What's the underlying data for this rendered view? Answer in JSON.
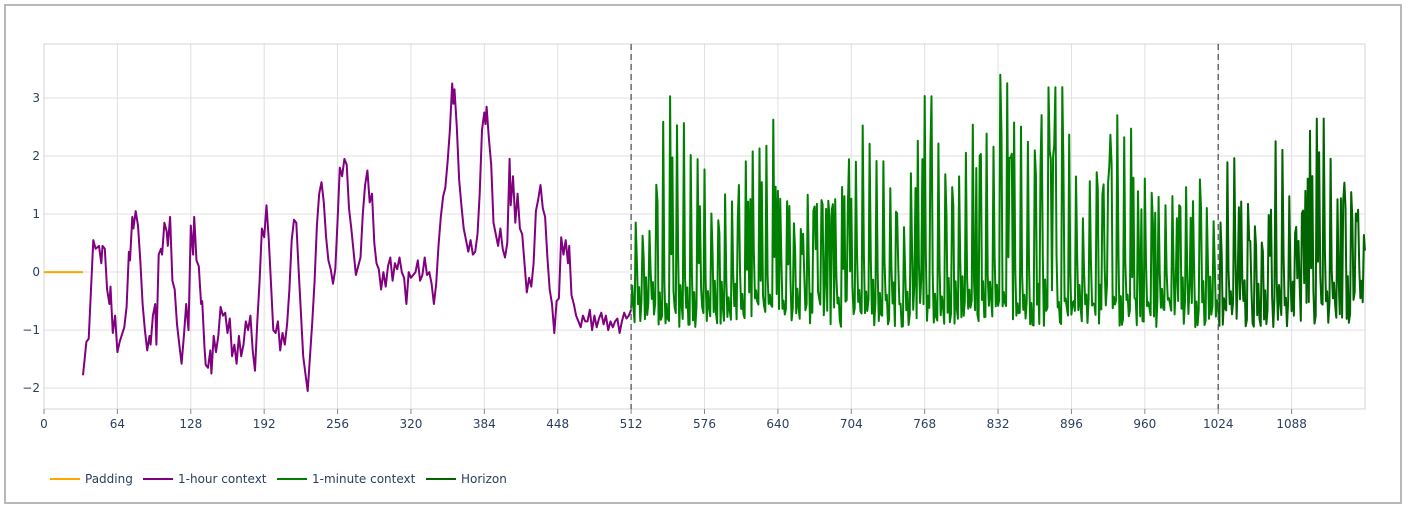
{
  "chart_data": {
    "type": "line",
    "title": "",
    "xlabel": "",
    "ylabel": "",
    "xlim": [
      0,
      1152
    ],
    "ylim": [
      -2.36,
      3.93
    ],
    "grid": true,
    "legend_position": "bottom-left, horizontal",
    "x_ticks": [
      0,
      64,
      128,
      192,
      256,
      320,
      384,
      448,
      512,
      576,
      640,
      704,
      768,
      832,
      896,
      960,
      1024,
      1088
    ],
    "y_ticks": [
      -2,
      -1,
      0,
      1,
      2,
      3
    ],
    "y_tick_labels": [
      "−2",
      "−1",
      "0",
      "1",
      "2",
      "3"
    ],
    "vertical_markers": [
      {
        "x": 512,
        "style": "dashed",
        "color": "#555555"
      },
      {
        "x": 1024,
        "style": "dashed",
        "color": "#555555"
      }
    ],
    "series": [
      {
        "name": "Padding",
        "color": "#FFA500",
        "x_range": [
          0,
          34
        ],
        "points": [
          [
            0,
            0
          ],
          [
            34,
            0
          ]
        ]
      },
      {
        "name": "1-hour context",
        "color": "#800080",
        "x_range": [
          34,
          512
        ],
        "anchors": [
          [
            34,
            -1.78
          ],
          [
            37,
            -1.2
          ],
          [
            39,
            -1.15
          ],
          [
            43,
            0.55
          ],
          [
            45,
            0.4
          ],
          [
            48,
            0.45
          ],
          [
            50,
            0.15
          ],
          [
            51,
            0.45
          ],
          [
            53,
            0.4
          ],
          [
            55,
            -0.3
          ],
          [
            57,
            -0.55
          ],
          [
            58,
            -0.25
          ],
          [
            60,
            -1.05
          ],
          [
            62,
            -0.75
          ],
          [
            64,
            -1.38
          ],
          [
            66,
            -1.2
          ],
          [
            70,
            -0.95
          ],
          [
            72,
            -0.6
          ],
          [
            74,
            0.35
          ],
          [
            75,
            0.2
          ],
          [
            77,
            0.95
          ],
          [
            78,
            0.75
          ],
          [
            80,
            1.05
          ],
          [
            82,
            0.8
          ],
          [
            84,
            0.2
          ],
          [
            86,
            -0.55
          ],
          [
            88,
            -1.0
          ],
          [
            90,
            -1.35
          ],
          [
            92,
            -1.1
          ],
          [
            93,
            -1.25
          ],
          [
            95,
            -0.75
          ],
          [
            97,
            -0.55
          ],
          [
            98,
            -1.25
          ],
          [
            100,
            0.3
          ],
          [
            102,
            0.4
          ],
          [
            103,
            0.3
          ],
          [
            105,
            0.85
          ],
          [
            107,
            0.7
          ],
          [
            108,
            0.45
          ],
          [
            110,
            0.95
          ],
          [
            112,
            -0.15
          ],
          [
            114,
            -0.3
          ],
          [
            116,
            -0.9
          ],
          [
            118,
            -1.25
          ],
          [
            120,
            -1.58
          ],
          [
            122,
            -1.1
          ],
          [
            124,
            -0.55
          ],
          [
            126,
            -1.0
          ],
          [
            128,
            0.8
          ],
          [
            130,
            0.3
          ],
          [
            131,
            0.95
          ],
          [
            133,
            0.2
          ],
          [
            135,
            0.1
          ],
          [
            137,
            -0.55
          ],
          [
            138,
            -0.5
          ],
          [
            140,
            -1.3
          ],
          [
            141,
            -1.6
          ],
          [
            143,
            -1.65
          ],
          [
            145,
            -1.35
          ],
          [
            146,
            -1.75
          ],
          [
            148,
            -1.1
          ],
          [
            150,
            -1.38
          ],
          [
            152,
            -1.1
          ],
          [
            154,
            -0.6
          ],
          [
            156,
            -0.75
          ],
          [
            158,
            -0.7
          ],
          [
            160,
            -1.05
          ],
          [
            162,
            -0.8
          ],
          [
            164,
            -1.45
          ],
          [
            166,
            -1.25
          ],
          [
            168,
            -1.58
          ],
          [
            170,
            -1.1
          ],
          [
            172,
            -1.45
          ],
          [
            174,
            -1.25
          ],
          [
            176,
            -0.85
          ],
          [
            178,
            -1.0
          ],
          [
            180,
            -0.75
          ],
          [
            182,
            -1.35
          ],
          [
            184,
            -1.7
          ],
          [
            186,
            -0.85
          ],
          [
            188,
            -0.15
          ],
          [
            190,
            0.75
          ],
          [
            192,
            0.6
          ],
          [
            194,
            1.15
          ],
          [
            196,
            0.55
          ],
          [
            198,
            -0.2
          ],
          [
            200,
            -1.0
          ],
          [
            202,
            -1.05
          ],
          [
            204,
            -0.85
          ],
          [
            206,
            -1.35
          ],
          [
            208,
            -1.05
          ],
          [
            210,
            -1.25
          ],
          [
            212,
            -0.9
          ],
          [
            214,
            -0.3
          ],
          [
            216,
            0.55
          ],
          [
            218,
            0.9
          ],
          [
            220,
            0.85
          ],
          [
            222,
            0.05
          ],
          [
            224,
            -0.7
          ],
          [
            226,
            -1.45
          ],
          [
            228,
            -1.75
          ],
          [
            230,
            -2.05
          ],
          [
            232,
            -1.45
          ],
          [
            234,
            -0.85
          ],
          [
            236,
            -0.15
          ],
          [
            238,
            0.8
          ],
          [
            240,
            1.35
          ],
          [
            242,
            1.55
          ],
          [
            244,
            1.2
          ],
          [
            246,
            0.6
          ],
          [
            248,
            0.2
          ],
          [
            250,
            0.05
          ],
          [
            252,
            -0.2
          ],
          [
            254,
            0.05
          ],
          [
            256,
            0.9
          ],
          [
            258,
            1.8
          ],
          [
            260,
            1.65
          ],
          [
            262,
            1.95
          ],
          [
            264,
            1.85
          ],
          [
            266,
            1.1
          ],
          [
            268,
            0.75
          ],
          [
            270,
            0.35
          ],
          [
            272,
            -0.05
          ],
          [
            274,
            0.1
          ],
          [
            276,
            0.25
          ],
          [
            278,
            1.0
          ],
          [
            280,
            1.5
          ],
          [
            282,
            1.75
          ],
          [
            284,
            1.2
          ],
          [
            286,
            1.35
          ],
          [
            288,
            0.5
          ],
          [
            290,
            0.15
          ],
          [
            292,
            0.05
          ],
          [
            294,
            -0.3
          ],
          [
            296,
            0.0
          ],
          [
            298,
            -0.25
          ],
          [
            300,
            0.1
          ],
          [
            302,
            0.25
          ],
          [
            304,
            -0.15
          ],
          [
            306,
            0.15
          ],
          [
            308,
            0.05
          ],
          [
            310,
            0.25
          ],
          [
            312,
            0.0
          ],
          [
            314,
            -0.1
          ],
          [
            316,
            -0.55
          ],
          [
            318,
            0.0
          ],
          [
            320,
            -0.1
          ],
          [
            322,
            -0.05
          ],
          [
            324,
            0.0
          ],
          [
            326,
            0.2
          ],
          [
            328,
            -0.15
          ],
          [
            330,
            -0.05
          ],
          [
            332,
            0.25
          ],
          [
            334,
            -0.05
          ],
          [
            336,
            0.0
          ],
          [
            338,
            -0.2
          ],
          [
            340,
            -0.55
          ],
          [
            342,
            -0.2
          ],
          [
            344,
            0.45
          ],
          [
            346,
            0.95
          ],
          [
            348,
            1.3
          ],
          [
            350,
            1.45
          ],
          [
            352,
            1.9
          ],
          [
            354,
            2.45
          ],
          [
            356,
            3.25
          ],
          [
            357,
            2.9
          ],
          [
            358,
            3.15
          ],
          [
            360,
            2.5
          ],
          [
            362,
            1.6
          ],
          [
            364,
            1.15
          ],
          [
            366,
            0.75
          ],
          [
            368,
            0.55
          ],
          [
            370,
            0.35
          ],
          [
            372,
            0.55
          ],
          [
            374,
            0.3
          ],
          [
            376,
            0.35
          ],
          [
            378,
            0.65
          ],
          [
            380,
            1.35
          ],
          [
            382,
            2.45
          ],
          [
            384,
            2.75
          ],
          [
            385,
            2.55
          ],
          [
            386,
            2.85
          ],
          [
            388,
            2.3
          ],
          [
            390,
            1.85
          ],
          [
            392,
            0.85
          ],
          [
            394,
            0.65
          ],
          [
            396,
            0.45
          ],
          [
            398,
            0.75
          ],
          [
            400,
            0.4
          ],
          [
            402,
            0.25
          ],
          [
            404,
            0.5
          ],
          [
            406,
            1.95
          ],
          [
            407,
            1.15
          ],
          [
            409,
            1.65
          ],
          [
            411,
            0.85
          ],
          [
            413,
            1.35
          ],
          [
            415,
            0.75
          ],
          [
            417,
            0.65
          ],
          [
            419,
            0.15
          ],
          [
            421,
            -0.35
          ],
          [
            423,
            -0.1
          ],
          [
            425,
            -0.25
          ],
          [
            427,
            0.15
          ],
          [
            429,
            1.05
          ],
          [
            431,
            1.25
          ],
          [
            433,
            1.5
          ],
          [
            435,
            1.1
          ],
          [
            437,
            0.95
          ],
          [
            439,
            0.25
          ],
          [
            441,
            -0.3
          ],
          [
            443,
            -0.55
          ],
          [
            445,
            -1.05
          ],
          [
            447,
            -0.5
          ],
          [
            449,
            -0.45
          ],
          [
            451,
            0.6
          ],
          [
            453,
            0.3
          ],
          [
            455,
            0.55
          ],
          [
            457,
            0.15
          ],
          [
            458,
            0.45
          ],
          [
            460,
            -0.4
          ],
          [
            462,
            -0.55
          ],
          [
            464,
            -0.75
          ],
          [
            466,
            -0.85
          ],
          [
            468,
            -0.95
          ],
          [
            470,
            -0.75
          ],
          [
            472,
            -0.85
          ],
          [
            474,
            -0.85
          ],
          [
            476,
            -0.65
          ],
          [
            478,
            -1.0
          ],
          [
            480,
            -0.75
          ],
          [
            482,
            -0.95
          ],
          [
            484,
            -0.8
          ],
          [
            486,
            -0.7
          ],
          [
            488,
            -0.9
          ],
          [
            490,
            -0.75
          ],
          [
            492,
            -1.0
          ],
          [
            494,
            -0.85
          ],
          [
            496,
            -0.95
          ],
          [
            498,
            -0.85
          ],
          [
            500,
            -0.8
          ],
          [
            502,
            -1.05
          ],
          [
            504,
            -0.85
          ],
          [
            506,
            -0.7
          ],
          [
            508,
            -0.8
          ],
          [
            510,
            -0.75
          ],
          [
            512,
            -0.65
          ]
        ]
      },
      {
        "name": "1-minute context",
        "color": "#008000",
        "x_range": [
          512,
          1024
        ],
        "peaks_note": "spiky signal, ~2-3 unit oscillations every ~5-6 samples with baseline near -0.8 and bursts up to ~3.6",
        "bursts": [
          [
            512,
            0.7
          ],
          [
            520,
            0.8
          ],
          [
            530,
            0.9
          ],
          [
            545,
            3.1
          ],
          [
            560,
            2.2
          ],
          [
            590,
            1.0
          ],
          [
            625,
            2.1
          ],
          [
            635,
            2.55
          ],
          [
            655,
            0.8
          ],
          [
            670,
            1.3
          ],
          [
            700,
            1.6
          ],
          [
            715,
            2.6
          ],
          [
            730,
            2.0
          ],
          [
            750,
            1.2
          ],
          [
            770,
            3.2
          ],
          [
            790,
            1.1
          ],
          [
            805,
            2.0
          ],
          [
            825,
            3.6
          ],
          [
            835,
            3.3
          ],
          [
            860,
            2.1
          ],
          [
            880,
            3.3
          ],
          [
            890,
            2.9
          ],
          [
            905,
            1.1
          ],
          [
            930,
            2.5
          ],
          [
            945,
            2.5
          ],
          [
            965,
            1.3
          ],
          [
            990,
            1.3
          ],
          [
            1010,
            1.5
          ],
          [
            1024,
            0.6
          ]
        ]
      },
      {
        "name": "Horizon",
        "color": "#006400",
        "x_range": [
          1024,
          1152
        ],
        "bursts": [
          [
            1024,
            0.5
          ],
          [
            1035,
            2.55
          ],
          [
            1045,
            1.3
          ],
          [
            1055,
            0.6
          ],
          [
            1065,
            0.4
          ],
          [
            1075,
            2.5
          ],
          [
            1085,
            1.5
          ],
          [
            1095,
            0.8
          ],
          [
            1105,
            2.6
          ],
          [
            1115,
            3.0
          ],
          [
            1125,
            1.8
          ],
          [
            1140,
            1.45
          ],
          [
            1152,
            0.5
          ]
        ]
      }
    ]
  },
  "legend": {
    "items": [
      {
        "label": "Padding",
        "color": "#FFA500"
      },
      {
        "label": "1-hour context",
        "color": "#800080"
      },
      {
        "label": "1-minute context",
        "color": "#008000"
      },
      {
        "label": "Horizon",
        "color": "#006400"
      }
    ]
  },
  "axes": {
    "x_tick_labels": [
      "0",
      "64",
      "128",
      "192",
      "256",
      "320",
      "384",
      "448",
      "512",
      "576",
      "640",
      "704",
      "768",
      "832",
      "896",
      "960",
      "1024",
      "1088"
    ],
    "y_tick_labels": [
      "−2",
      "−1",
      "0",
      "1",
      "2",
      "3"
    ]
  }
}
